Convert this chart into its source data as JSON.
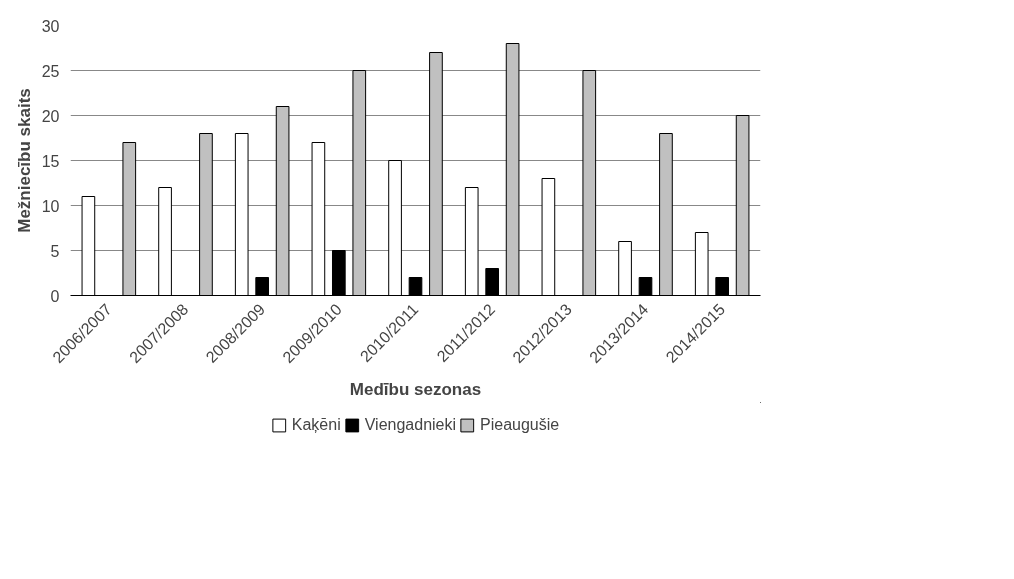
{
  "chart_data": {
    "type": "bar",
    "xlabel": "Medību sezonas",
    "ylabel": "Mežniecību skaits",
    "categories": [
      "2006/2007",
      "2007/2008",
      "2008/2009",
      "2009/2010",
      "2010/2011",
      "2011/2012",
      "2012/2013",
      "2013/2014",
      "2014/2015"
    ],
    "series": [
      {
        "name": "Kaķēni",
        "color": "#ffffff",
        "values": [
          11,
          12,
          18,
          17,
          15,
          12,
          13,
          6,
          7
        ]
      },
      {
        "name": "Viengadnieki",
        "color": "#000000",
        "values": [
          0,
          0,
          2,
          5,
          2,
          3,
          0,
          2,
          2
        ]
      },
      {
        "name": "Pieaugušie",
        "color": "#c0c0c0",
        "values": [
          17,
          18,
          21,
          25,
          27,
          28,
          25,
          18,
          20
        ]
      }
    ],
    "ylim": [
      0,
      30
    ],
    "yticks": [
      0,
      5,
      10,
      15,
      20,
      25,
      30
    ],
    "grid": "y",
    "legend": "bottom"
  }
}
